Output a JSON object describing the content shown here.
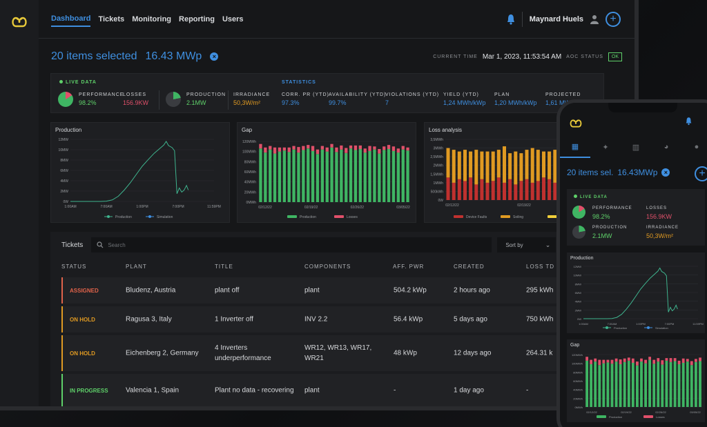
{
  "nav": {
    "items": [
      "Dashboard",
      "Tickets",
      "Monitoring",
      "Reporting",
      "Users"
    ],
    "active": "Dashboard",
    "user_name": "Maynard Huels"
  },
  "selection": {
    "count_label": "20 items selected",
    "power": "16.43 MWp"
  },
  "status_bar": {
    "time_label": "CURRENT TIME",
    "time_value": "Mar 1, 2023, 11:53:54 AM",
    "aoc_label": "AOC STATUS",
    "aoc_value": "OK"
  },
  "kpis": {
    "live_label": "LIVE DATA",
    "statistics_label": "STATISTICS",
    "performance": {
      "label": "PERFORMANCE",
      "value": "98.2%"
    },
    "losses": {
      "label": "LOSSES",
      "value": "156.9KW"
    },
    "production": {
      "label": "PRODUCTION",
      "value": "2.1MW"
    },
    "irradiance": {
      "label": "IRRADIANCE",
      "value": "50,3W/m²"
    },
    "corr_pr": {
      "label": "CORR. PR (YTD)",
      "value": "97.3%"
    },
    "availability": {
      "label": "AVAILABILITY (YTD)",
      "value": "99.7%"
    },
    "violations": {
      "label": "VIOLATIONS (YTD)",
      "value": "7"
    },
    "yield": {
      "label": "YIELD (YTD)",
      "value": "1,24 MWh/kWp"
    },
    "plan": {
      "label": "PLAN",
      "value": "1,20 MWh/kWp"
    },
    "projected": {
      "label": "PROJECTED",
      "value": "1,61 MW"
    }
  },
  "chart_data": [
    {
      "type": "line",
      "title": "Production",
      "x_ticks": [
        "1:00AM",
        "7:00AM",
        "1:00PM",
        "7:00PM",
        "11:59PM"
      ],
      "y_ticks": [
        "0W",
        "2MW",
        "4MW",
        "6MW",
        "8MW",
        "10MW",
        "12MW"
      ],
      "ylim": [
        0,
        12
      ],
      "series": [
        {
          "name": "Production",
          "color": "#3fb58f",
          "points": [
            [
              0,
              0
            ],
            [
              5,
              0
            ],
            [
              6,
              0.05
            ],
            [
              7,
              0.3
            ],
            [
              8,
              1
            ],
            [
              9,
              2.2
            ],
            [
              10,
              3.6
            ],
            [
              11,
              5.2
            ],
            [
              12,
              6.8
            ],
            [
              13,
              8.1
            ],
            [
              14,
              9.3
            ],
            [
              15,
              10.3
            ],
            [
              15.6,
              10.9
            ],
            [
              16,
              11.6
            ],
            [
              16.4,
              10.8
            ],
            [
              17,
              10.4
            ],
            [
              17.4,
              9.8
            ],
            [
              17.8,
              1.5
            ],
            [
              18.2,
              2.6
            ],
            [
              18.6,
              1.8
            ],
            [
              19,
              2.2
            ],
            [
              19.4,
              3.1
            ],
            [
              19.7,
              2.2
            ]
          ]
        }
      ],
      "legend": [
        "Production",
        "Simulation"
      ],
      "legend_colors": [
        "#3fb58f",
        "#3f8fe0"
      ]
    },
    {
      "type": "bar",
      "title": "Gap",
      "x_ticks": [
        "02/12/22",
        "02/19/22",
        "02/26/22",
        "03/05/22"
      ],
      "y_ticks": [
        "0MWh",
        "20MWh",
        "40MWh",
        "60MWh",
        "80MWh",
        "100MWh",
        "120MWh"
      ],
      "ylim": [
        0,
        120
      ],
      "series": [
        {
          "name": "Production",
          "color": "#3fb563",
          "values": [
            106,
            98,
            104,
            96,
            100,
            102,
            99,
            104,
            98,
            103,
            106,
            101,
            95,
            104,
            100,
            108,
            99,
            104,
            97,
            106,
            103,
            105,
            98,
            101,
            104,
            96,
            103,
            105,
            101,
            98,
            104,
            102
          ]
        },
        {
          "name": "Losses",
          "color": "#e0506a",
          "values": [
            9,
            10,
            7,
            12,
            8,
            6,
            9,
            7,
            11,
            8,
            7,
            10,
            9,
            7,
            8,
            7,
            9,
            8,
            10,
            6,
            9,
            7,
            8,
            10,
            6,
            9,
            7,
            8,
            9,
            8,
            7,
            6
          ]
        }
      ]
    },
    {
      "type": "bar",
      "title": "Loss analysis",
      "x_ticks": [
        "02/12/22",
        "02/19/22",
        "02/26/22"
      ],
      "y_ticks": [
        "0W",
        "500kWh",
        "1MWh",
        "1,5MWh",
        "2MWh",
        "2,5MWh",
        "3MWh",
        "3,5MWh"
      ],
      "ylim": [
        0,
        3.5
      ],
      "series": [
        {
          "name": "Device Faults",
          "color": "#c0312f",
          "values": [
            1.3,
            1.0,
            1.2,
            1.1,
            1.3,
            0.9,
            1.2,
            1.0,
            1.1,
            1.3,
            1.0,
            1.2,
            0.9,
            1.1,
            1.2,
            1.0,
            1.1,
            1.3,
            1.2,
            1.0,
            0.9,
            1.1,
            1.2,
            1.0,
            1.1,
            1.2,
            1.0,
            1.1
          ]
        },
        {
          "name": "Soiling",
          "color": "#e09a22",
          "values": [
            1.7,
            1.9,
            1.6,
            1.8,
            1.5,
            2.0,
            1.6,
            1.8,
            1.7,
            1.6,
            2.1,
            1.5,
            1.9,
            1.6,
            1.7,
            2.0,
            1.8,
            1.5,
            1.6,
            1.9,
            2.0,
            1.6,
            1.7,
            1.9,
            1.6,
            1.5,
            1.8,
            1.7
          ]
        },
        {
          "name": "",
          "color": "#f2cf3a",
          "values": [
            0,
            0,
            0,
            0,
            0,
            0,
            0,
            0,
            0,
            0,
            0,
            0,
            0,
            0,
            0,
            0,
            0,
            0,
            0,
            0,
            0,
            0,
            0,
            0,
            0,
            0,
            0,
            0
          ]
        }
      ]
    }
  ],
  "tickets": {
    "title": "Tickets",
    "search_placeholder": "Search",
    "sort_label": "Sort by",
    "columns": [
      "STATUS",
      "PLANT",
      "TITLE",
      "COMPONENTS",
      "AFF. PWR",
      "CREATED",
      "LOSS TD"
    ],
    "rows": [
      {
        "status": "ASSIGNED",
        "status_color": "#e0634a",
        "plant": "Bludenz, Austria",
        "title": "plant off",
        "components": "plant",
        "aff_pwr": "504.2 kWp",
        "created": "2 hours ago",
        "loss": "295 kWh"
      },
      {
        "status": "ON HOLD",
        "status_color": "#e09a22",
        "plant": "Ragusa 3, Italy",
        "title": "1 Inverter off",
        "components": "INV 2.2",
        "aff_pwr": "56.4 kWp",
        "created": "5 days ago",
        "loss": "750 kWh"
      },
      {
        "status": "ON HOLD",
        "status_color": "#e09a22",
        "plant": "Eichenberg 2, Germany",
        "title": "4 Inverters underperformance",
        "components": "WR12, WR13, WR17, WR21",
        "aff_pwr": "48 kWp",
        "created": "12 days ago",
        "loss": "264.31 k"
      },
      {
        "status": "IN PROGRESS",
        "status_color": "#5fd16a",
        "plant": "Valencia 1, Spain",
        "title": "Plant no data - recovering",
        "components": "plant",
        "aff_pwr": "-",
        "created": "1 day ago",
        "loss": "-"
      }
    ]
  },
  "phone": {
    "selection": "20 items sel.",
    "power": "16.43MWp",
    "live_label": "LIVE DATA",
    "performance_label": "PERFORMANCE",
    "performance": "98.2%",
    "losses_label": "LOSSES",
    "losses": "156.9KW",
    "production_label": "PRODUCTION",
    "production": "2.1MW",
    "irradiance_label": "IRRADIANCE",
    "irradiance": "50,3W/m²",
    "production_title": "Production",
    "gap_title": "Gap",
    "prod_x_ticks": [
      "1:00AM",
      "7:00AM",
      "1:00PM",
      "7:00PM",
      "11:59PM"
    ],
    "prod_y_ticks": [
      "0W",
      "2MW",
      "4MW",
      "6MW",
      "8MW",
      "10MW",
      "12MW"
    ],
    "gap_x_ticks": [
      "02/12/22",
      "02/19/22",
      "02/26/22",
      "03/05/22"
    ],
    "gap_y_ticks": [
      "0MWh",
      "20MWh",
      "40MWh",
      "60MWh",
      "80MWh",
      "100MWh",
      "120MWh"
    ]
  },
  "colors": {
    "accent": "#3f8fe0",
    "ok": "#5fd16a",
    "loss": "#e0506a",
    "warn": "#e09a22"
  }
}
